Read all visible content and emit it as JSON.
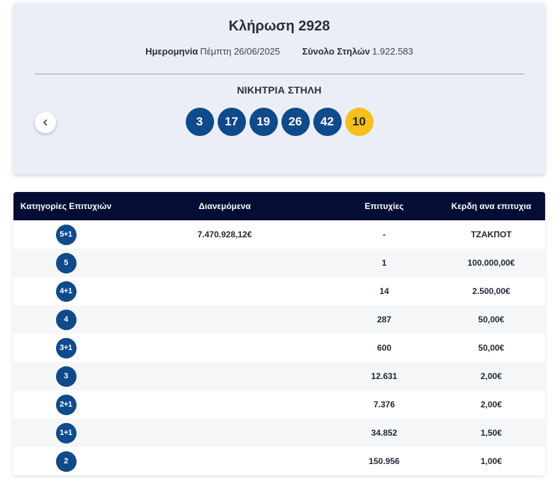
{
  "draw": {
    "title": "Κλήρωση 2928",
    "date_label": "Ημερομηνία",
    "date_value": "Πέμπτη 26/06/2025",
    "columns_label": "Σύνολο Στηλών",
    "columns_value": "1.922.583",
    "winning_label": "ΝΙΚΗΤΡΙΑ ΣΤΗΛΗ",
    "numbers": [
      "3",
      "17",
      "19",
      "26",
      "42"
    ],
    "joker": "10",
    "colors": {
      "ball": "#0f4a8a",
      "joker": "#f6bf1c",
      "header": "#050d35"
    }
  },
  "nav": {
    "prev_icon": "chevron-left-icon"
  },
  "table": {
    "headers": [
      "Κατηγορίες Επιτυχιών",
      "Διανεμόμενα",
      "Επιτυχίες",
      "Κερδη ανα επιτυχια"
    ],
    "rows": [
      {
        "category": "5+1",
        "distributed": "7.470.928,12€",
        "winners": "-",
        "prize": "ΤΖΑΚΠΟΤ"
      },
      {
        "category": "5",
        "distributed": "",
        "winners": "1",
        "prize": "100.000,00€"
      },
      {
        "category": "4+1",
        "distributed": "",
        "winners": "14",
        "prize": "2.500,00€"
      },
      {
        "category": "4",
        "distributed": "",
        "winners": "287",
        "prize": "50,00€"
      },
      {
        "category": "3+1",
        "distributed": "",
        "winners": "600",
        "prize": "50,00€"
      },
      {
        "category": "3",
        "distributed": "",
        "winners": "12.631",
        "prize": "2,00€"
      },
      {
        "category": "2+1",
        "distributed": "",
        "winners": "7.376",
        "prize": "2,00€"
      },
      {
        "category": "1+1",
        "distributed": "",
        "winners": "34.852",
        "prize": "1,50€"
      },
      {
        "category": "2",
        "distributed": "",
        "winners": "150.956",
        "prize": "1,00€"
      }
    ]
  }
}
